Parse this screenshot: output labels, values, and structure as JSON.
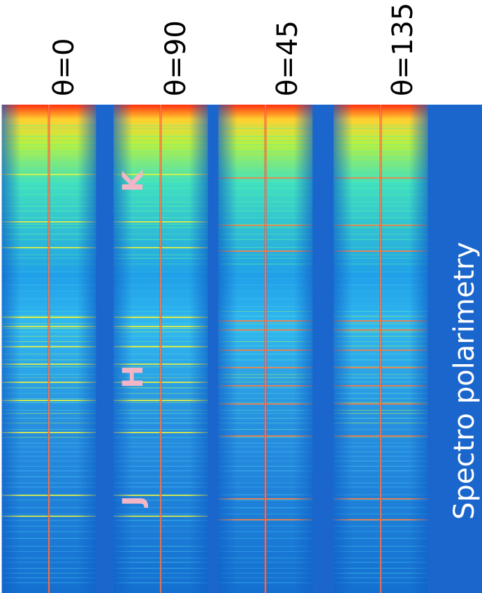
{
  "panels": [
    {
      "label": "θ=0"
    },
    {
      "label": "θ=90"
    },
    {
      "label": "θ=45"
    },
    {
      "label": "θ=135"
    }
  ],
  "bands": [
    {
      "label": "K"
    },
    {
      "label": "H"
    },
    {
      "label": "J"
    }
  ],
  "caption": "Spectro polarimetry"
}
